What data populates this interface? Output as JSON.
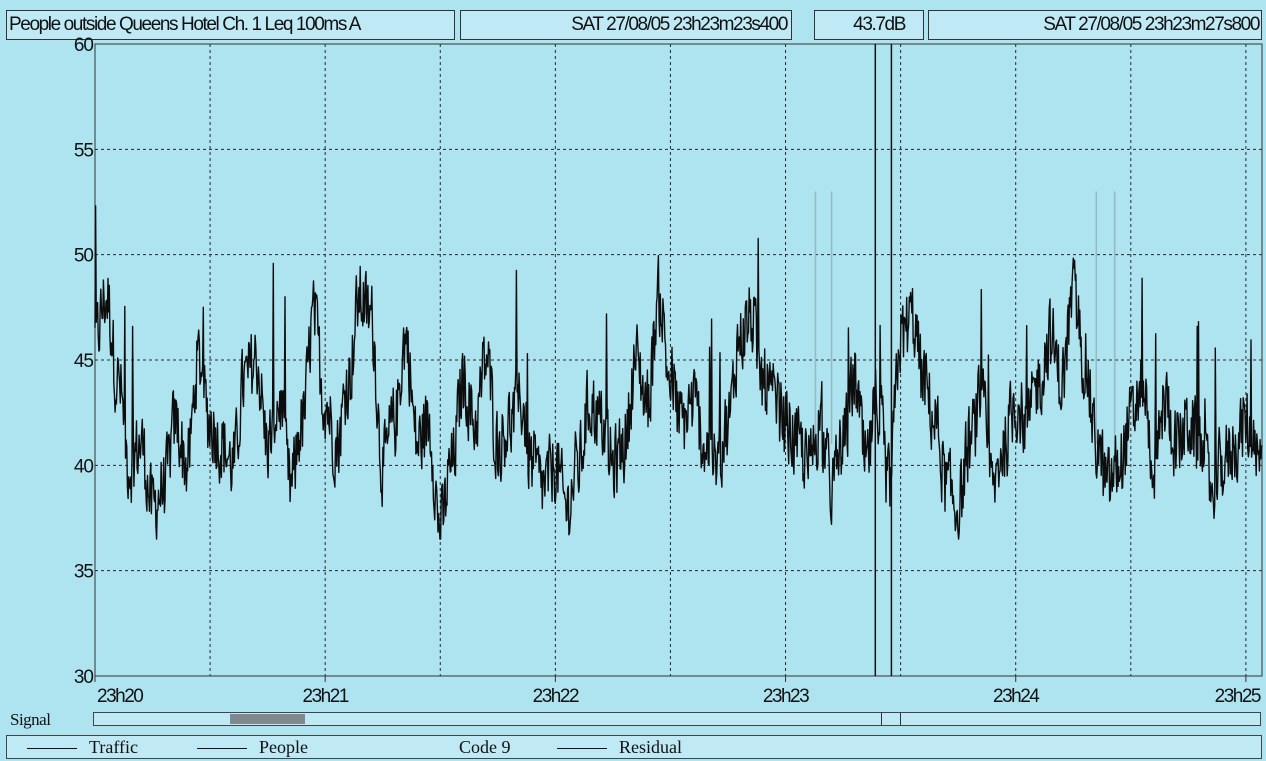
{
  "header": {
    "title": "People outside Queens Hotel Ch. 1 Leq 100ms A",
    "start_time": "SAT 27/08/05 23h23m23s400",
    "cursor_level": "43.7dB",
    "end_time": "SAT 27/08/05 23h23m27s800"
  },
  "signal": {
    "label": "Signal"
  },
  "legend": {
    "items": [
      {
        "label": "Traffic",
        "line": true
      },
      {
        "label": "People",
        "line": true
      },
      {
        "label": "Code 9",
        "line": false
      },
      {
        "label": "Residual",
        "line": true
      }
    ]
  },
  "colors": {
    "background": "#aee3f0",
    "trace": "#0d0d0d",
    "grid": "#2a2a2a",
    "faint_trace": "#93b9c2"
  },
  "chart_data": {
    "type": "line",
    "title": "",
    "xlabel": "",
    "ylabel": "",
    "ylim": [
      30,
      60
    ],
    "yticks": [
      30,
      35,
      40,
      45,
      50,
      55,
      60
    ],
    "x_ticks": [
      "23h20",
      "23h21",
      "23h22",
      "23h23",
      "23h24",
      "23h25"
    ],
    "x_unit": "minutes after 23h20",
    "xlim": [
      0,
      5.07
    ],
    "grid": true,
    "cursor_x": [
      3.39,
      3.46
    ],
    "series": [
      {
        "name": "",
        "x": [
          0.0,
          0.05,
          0.1,
          0.15,
          0.2,
          0.25,
          0.3,
          0.35,
          0.4,
          0.45,
          0.5,
          0.55,
          0.6,
          0.65,
          0.7,
          0.75,
          0.8,
          0.85,
          0.9,
          0.95,
          1.0,
          1.05,
          1.1,
          1.15,
          1.2,
          1.25,
          1.3,
          1.35,
          1.4,
          1.45,
          1.5,
          1.55,
          1.6,
          1.65,
          1.7,
          1.75,
          1.8,
          1.85,
          1.9,
          1.95,
          2.0,
          2.05,
          2.1,
          2.15,
          2.2,
          2.25,
          2.3,
          2.35,
          2.4,
          2.45,
          2.5,
          2.55,
          2.6,
          2.65,
          2.7,
          2.75,
          2.8,
          2.85,
          2.9,
          2.95,
          3.0,
          3.05,
          3.1,
          3.15,
          3.2,
          3.25,
          3.3,
          3.35,
          3.4,
          3.45,
          3.5,
          3.55,
          3.6,
          3.65,
          3.7,
          3.75,
          3.8,
          3.85,
          3.9,
          3.95,
          4.0,
          4.05,
          4.1,
          4.15,
          4.2,
          4.25,
          4.3,
          4.35,
          4.4,
          4.45,
          4.5,
          4.55,
          4.6,
          4.65,
          4.7,
          4.75,
          4.8,
          4.85,
          4.9,
          4.95,
          5.0,
          5.05
        ],
        "y": [
          46,
          48,
          44,
          40,
          41,
          38,
          39,
          42,
          40,
          45,
          42,
          41,
          40,
          44,
          45,
          41,
          43,
          39,
          42,
          47,
          43,
          41,
          44,
          48,
          47,
          40,
          42,
          46,
          41,
          42,
          37,
          40,
          44,
          42,
          45,
          41,
          42,
          43,
          40,
          39,
          40,
          38,
          40,
          43,
          42,
          40,
          41,
          45,
          43,
          48,
          44,
          42,
          43,
          41,
          40,
          42,
          46,
          47,
          44,
          43,
          42,
          41,
          40,
          42,
          39,
          41,
          44,
          40,
          43,
          39,
          46,
          47,
          44,
          42,
          39,
          38,
          41,
          43,
          39,
          41,
          43,
          42,
          44,
          46,
          44,
          48,
          45,
          41,
          39,
          40,
          42,
          44,
          40,
          43,
          41,
          42,
          41,
          39,
          40,
          41,
          42,
          40
        ]
      }
    ]
  }
}
